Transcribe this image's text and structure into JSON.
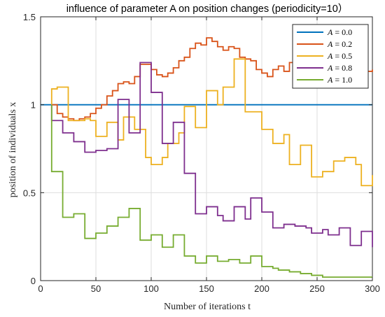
{
  "chart_data": {
    "type": "line",
    "title": "influence of parameter A on position changes (periodicity=10）",
    "xlabel": "Number of iterations t",
    "ylabel": "position of individuals x",
    "xlim": [
      0,
      300
    ],
    "ylim": [
      0,
      1.5
    ],
    "xticks": [
      0,
      50,
      100,
      150,
      200,
      250,
      300
    ],
    "xtick_labels": [
      "0",
      "50",
      "100",
      "150",
      "200",
      "250",
      "300"
    ],
    "yticks": [
      0,
      0.5,
      1,
      1.5
    ],
    "ytick_labels": [
      "0",
      "0.5",
      "1",
      "1.5"
    ],
    "grid": true,
    "legend_position": "top-right",
    "step_width": 5,
    "series": [
      {
        "name": "A = 0.0",
        "legend_var": "A",
        "legend_val": "0.0",
        "color": "#0072BD",
        "x": [
          0,
          300
        ],
        "y": [
          1,
          1
        ]
      },
      {
        "name": "A = 0.2",
        "legend_var": "A",
        "legend_val": "0.2",
        "color": "#D95319",
        "x": [
          10,
          15,
          20,
          25,
          30,
          35,
          40,
          45,
          50,
          55,
          60,
          65,
          70,
          75,
          80,
          85,
          90,
          95,
          100,
          105,
          110,
          115,
          120,
          125,
          130,
          135,
          140,
          145,
          150,
          155,
          160,
          165,
          170,
          175,
          180,
          185,
          190,
          195,
          200,
          205,
          210,
          215,
          220,
          225,
          230,
          235,
          240,
          245,
          250,
          255,
          260,
          265,
          270,
          275,
          280,
          285,
          290,
          295,
          300
        ],
        "y": [
          1,
          0.95,
          0.93,
          0.92,
          0.91,
          0.92,
          0.93,
          0.95,
          0.98,
          1.0,
          1.05,
          1.08,
          1.12,
          1.13,
          1.12,
          1.16,
          1.23,
          1.23,
          1.2,
          1.17,
          1.16,
          1.18,
          1.21,
          1.25,
          1.27,
          1.32,
          1.35,
          1.34,
          1.38,
          1.36,
          1.33,
          1.31,
          1.33,
          1.32,
          1.27,
          1.26,
          1.25,
          1.2,
          1.18,
          1.16,
          1.2,
          1.22,
          1.19,
          1.24,
          1.18,
          1.19,
          1.18,
          1.16,
          1.15,
          1.2,
          1.21,
          1.21,
          1.18,
          1.2,
          1.19,
          1.2,
          1.18,
          1.19,
          1.2
        ]
      },
      {
        "name": "A = 0.5",
        "legend_var": "A",
        "legend_val": "0.5",
        "color": "#EDB120",
        "x": [
          10,
          15,
          20,
          25,
          30,
          35,
          40,
          45,
          50,
          55,
          60,
          65,
          70,
          75,
          80,
          85,
          90,
          95,
          100,
          105,
          110,
          115,
          120,
          125,
          130,
          135,
          140,
          145,
          150,
          155,
          160,
          165,
          170,
          175,
          180,
          185,
          190,
          195,
          200,
          205,
          210,
          215,
          220,
          225,
          230,
          235,
          240,
          245,
          250,
          255,
          260,
          265,
          270,
          275,
          280,
          285,
          290,
          295,
          300
        ],
        "y": [
          1.09,
          1.1,
          1.1,
          0.91,
          0.91,
          0.91,
          0.92,
          0.91,
          0.82,
          0.82,
          0.9,
          0.9,
          0.8,
          0.93,
          0.93,
          0.86,
          0.86,
          0.7,
          0.66,
          0.66,
          0.7,
          0.78,
          0.78,
          0.84,
          0.99,
          0.99,
          0.87,
          0.87,
          1.08,
          1.08,
          1.0,
          1.1,
          1.1,
          1.26,
          1.26,
          0.96,
          0.96,
          0.96,
          0.86,
          0.86,
          0.78,
          0.78,
          0.83,
          0.66,
          0.66,
          0.77,
          0.77,
          0.59,
          0.59,
          0.62,
          0.62,
          0.68,
          0.68,
          0.7,
          0.7,
          0.66,
          0.54,
          0.54,
          0.6
        ]
      },
      {
        "name": "A = 0.8",
        "legend_var": "A",
        "legend_val": "0.8",
        "color": "#7E2F8E",
        "x": [
          10,
          15,
          20,
          25,
          30,
          35,
          40,
          45,
          50,
          55,
          60,
          65,
          70,
          75,
          80,
          85,
          90,
          95,
          100,
          105,
          110,
          115,
          120,
          125,
          130,
          135,
          140,
          145,
          150,
          155,
          160,
          165,
          170,
          175,
          180,
          185,
          190,
          195,
          200,
          205,
          210,
          215,
          220,
          225,
          230,
          235,
          240,
          245,
          250,
          255,
          260,
          265,
          270,
          275,
          280,
          285,
          290,
          295,
          300
        ],
        "y": [
          0.91,
          0.91,
          0.84,
          0.84,
          0.79,
          0.79,
          0.73,
          0.73,
          0.74,
          0.74,
          0.75,
          0.75,
          1.03,
          1.03,
          0.84,
          0.84,
          1.24,
          1.24,
          1.07,
          1.07,
          0.78,
          0.78,
          0.9,
          0.9,
          0.61,
          0.61,
          0.38,
          0.38,
          0.42,
          0.42,
          0.37,
          0.34,
          0.34,
          0.42,
          0.42,
          0.35,
          0.47,
          0.47,
          0.39,
          0.39,
          0.3,
          0.3,
          0.32,
          0.32,
          0.31,
          0.31,
          0.3,
          0.27,
          0.27,
          0.29,
          0.26,
          0.26,
          0.3,
          0.3,
          0.2,
          0.2,
          0.28,
          0.28,
          0.19
        ]
      },
      {
        "name": "A = 1.0",
        "legend_var": "A",
        "legend_val": "1.0",
        "color": "#77AC30",
        "x": [
          10,
          15,
          20,
          25,
          30,
          35,
          40,
          45,
          50,
          55,
          60,
          65,
          70,
          75,
          80,
          85,
          90,
          95,
          100,
          105,
          110,
          115,
          120,
          125,
          130,
          135,
          140,
          145,
          150,
          155,
          160,
          165,
          170,
          175,
          180,
          185,
          190,
          195,
          200,
          205,
          210,
          215,
          220,
          225,
          230,
          235,
          240,
          245,
          250,
          255,
          260,
          265,
          270,
          275,
          280,
          285,
          290,
          295,
          300
        ],
        "y": [
          0.62,
          0.62,
          0.36,
          0.36,
          0.38,
          0.38,
          0.24,
          0.24,
          0.27,
          0.27,
          0.31,
          0.31,
          0.36,
          0.36,
          0.41,
          0.41,
          0.23,
          0.23,
          0.26,
          0.26,
          0.19,
          0.19,
          0.26,
          0.26,
          0.14,
          0.14,
          0.1,
          0.1,
          0.14,
          0.14,
          0.11,
          0.11,
          0.12,
          0.12,
          0.1,
          0.1,
          0.14,
          0.14,
          0.08,
          0.08,
          0.07,
          0.06,
          0.06,
          0.05,
          0.05,
          0.04,
          0.04,
          0.03,
          0.03,
          0.02,
          0.02,
          0.02,
          0.02,
          0.02,
          0.02,
          0.02,
          0.02,
          0.02,
          0.02
        ]
      }
    ]
  }
}
